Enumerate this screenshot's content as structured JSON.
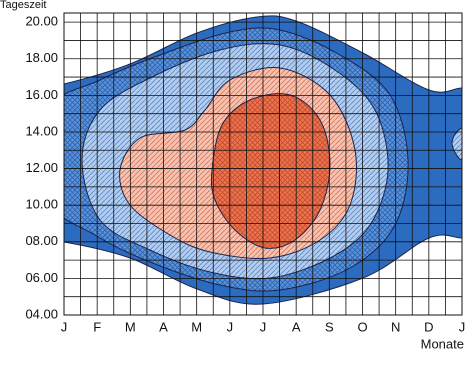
{
  "chart_data": {
    "type": "contour",
    "y_label": "Tageszeit",
    "x_label": "Monate",
    "categories": [
      "J",
      "F",
      "M",
      "A",
      "M",
      "J",
      "J",
      "A",
      "S",
      "O",
      "N",
      "D",
      "J"
    ],
    "ylim": [
      4,
      20.5
    ],
    "yticks": [
      {
        "value": 4,
        "label": "04.00"
      },
      {
        "value": 6,
        "label": "06.00"
      },
      {
        "value": 8,
        "label": "08.00"
      },
      {
        "value": 10,
        "label": "10.00"
      },
      {
        "value": 12,
        "label": "12.00"
      },
      {
        "value": 14,
        "label": "14.00"
      },
      {
        "value": 16,
        "label": "16.00"
      },
      {
        "value": 18,
        "label": "18.00"
      },
      {
        "value": 20,
        "label": "20.00"
      }
    ],
    "grid": true
  }
}
